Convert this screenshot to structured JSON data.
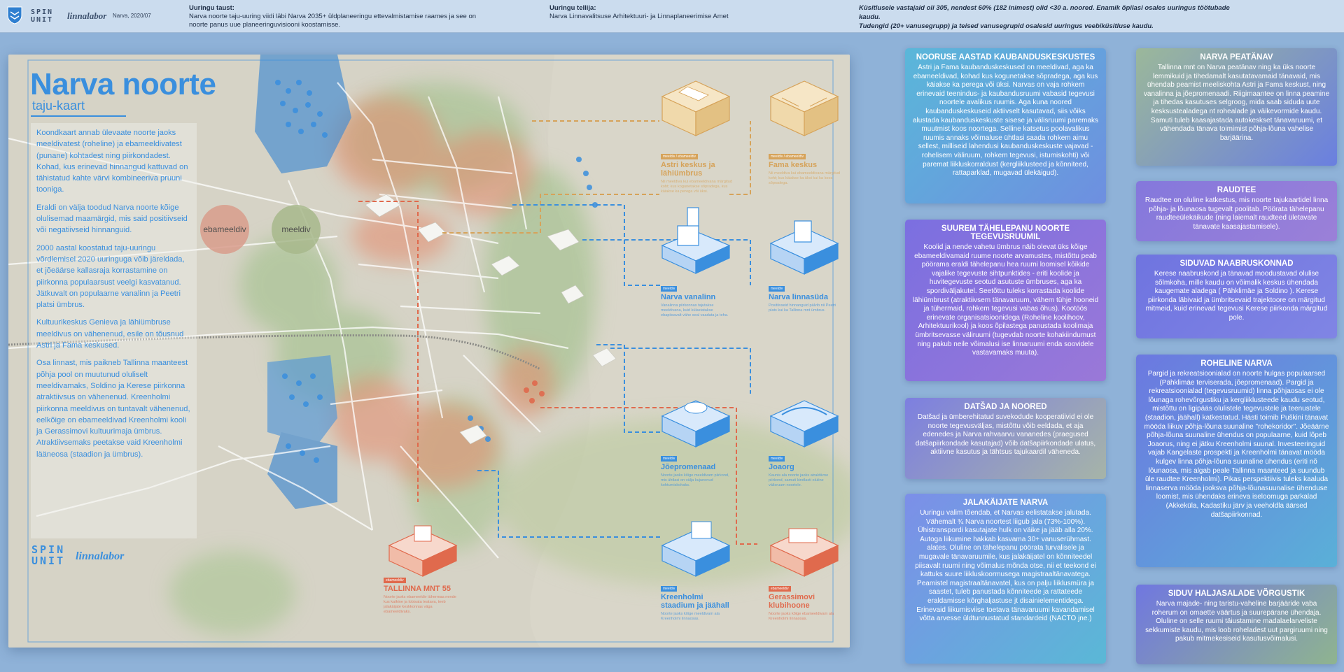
{
  "header": {
    "spin_unit": "SPIN UNIT",
    "linnalabor": "linnalabor",
    "place_date": "Narva, 2020/07",
    "background_label": "Uuringu taust:",
    "background_text": "Narva noorte taju-uuring viidi läbi Narva 2035+ üldplaneeringu ettevalmistamise raames ja see on noorte panus uue planeeringuvisiooni koostamisse.",
    "client_label": "Uuringu tellija:",
    "client_text": "Narva Linnavalitsuse Arhitektuuri- ja Linnaplaneerimise Amet",
    "respondents_line1": "Küsitlusele vastajaid oli  305, nendest 60% (182 inimest) olid <30 a. noored. Enamik õpilasi osales uuringus töötubade kaudu.",
    "respondents_line2": "Tudengid (20+ vanusegrupp) ja teised vanusegrupid osalesid uuringus veebiküsitluse kaudu."
  },
  "poster": {
    "title": "Narva noorte",
    "subtitle": "taju-kaart",
    "intro": [
      "Koondkaart annab ülevaate noorte jaoks meeldivatest (roheline) ja ebameeldivatest (punane) kohtadest ning piirkondadest. Kohad, kus erinevad hinnangud kattuvad on tähistatud kahte värvi kombineeriva pruuni tooniga.",
      "Eraldi on välja toodud Narva noorte kõige olulisemad maamärgid, mis said positiivseid või negatiivseid hinnanguid.",
      "2000 aastal koostatud taju-uuringu võrdlemisel 2020 uuringuga võib järeldada, et jõeäärse kallasraja korrastamine on piirkonna populaarsust veelgi kasvatanud. Jätkuvalt on populaarne vanalinn ja Peetri platsi ümbrus.",
      "Kultuurikeskus Genieva ja lähiümbruse meeldivus on vähenenud, esile on tõusnud Astri ja Fama keskused.",
      "Osa linnast, mis paikneb Tallinna maanteest põhja pool on muutunud oluliselt meeldivamaks, Soldino ja Kerese piirkonna atraktiivsus on vähenenud. Kreenholmi piirkonna meeldivus on tuntavalt vähenenud, eelkõige on ebameeldivad Kreenholmi kooli ja Gerassimovi kultuurimaja ümbrus.  Atraktiivsemaks peetakse vaid Kreenholmi lääneosa (staadion ja ümbrus)."
    ],
    "legend_negative": "ebameeldiv",
    "legend_positive": "meeldiv",
    "spin_unit": "SPIN UNIT",
    "linnalabor": "linnalabor",
    "buildings": [
      {
        "name": "Astri keskus ja lähiümbrus",
        "tag": "meeldiv / ebameeldiv",
        "desc": "Nii meeldiva kui ebameeldivana märgitud koht; kus kogunetakse sõpradega, kus käiakse ka perega või üksi."
      },
      {
        "name": "Fama keskus",
        "tag": "meeldiv / ebameeldiv",
        "desc": "Nii meeldiva kui ebameeldivana märgitud koht; kus käiakse ka üksi kui ka koos sõpradega."
      },
      {
        "name": "Narva vanalinn",
        "tag": "meeldiv",
        "desc": "Vanalinna piirkonnas tajutakse meeldivana, kuid külastatakse ebapiisavalt vähe seal vaadata ja teha."
      },
      {
        "name": "Narva linnasüda",
        "tag": "meeldiv",
        "desc": "Positiivseid hinnanguid pälvib nii Peetri plats kui ka Tallinna mnt ümbrus."
      },
      {
        "name": "Jõepromenaad",
        "tag": "meeldiv",
        "desc": "Noorte jaoks kõige meeldivam piirkond, mis ühtlasi on välja kujunenud kohtumiskohaks."
      },
      {
        "name": "Joaorg",
        "tag": "meeldiv",
        "desc": "Kaunis ala noorte jaoks atraktiivne piirkond, samuti kindlasti oluline välisruum noortele."
      },
      {
        "name": "TALLINNA MNT 55",
        "tag": "ebameeldiv",
        "desc": "Noorte jaoks ebameeldiv tühermaa nende kus katkine ja lobisata teatava, teeb jalakäijate keskkonnas väga ebameeldivaks."
      },
      {
        "name": "Kreenholmi staadium ja jäähall",
        "tag": "meeldiv",
        "desc": "Noorte jaoks kõige meeldivam ala Kreenholmi linnaosas."
      },
      {
        "name": "Gerassimovi klubihoone",
        "tag": "ebameeldiv",
        "desc": "Noorte jaoks kõige ebameeldivam ala Kreenholmi linnaosas."
      }
    ]
  },
  "panels_left": [
    {
      "title": "NOORUSE AASTAD KAUBANDUSKESKUSTES",
      "text": "Astri ja Fama kaubanduskeskused on meeldivad, aga ka ebameeldivad, kohad kus kogunetakse sõpradega, aga kus käiakse ka perega või üksi. Narvas on vaja rohkem erinevaid teenindus- ja kaubandusruumi vabasid tegevusi noortele avalikus ruumis. Aga kuna noored kaubanduskeskuseid aktiivselt kasutavad, siis võiks alustada kaubanduskeskuste sisese ja välisruumi paremaks muutmist koos noortega. Selline katsetus poolavalikus ruumis annaks võimaluse ühtlasi saada rohkem aimu sellest, milliseid lahendusi kaubanduskeskuste vajavad - rohelisem väliruum, rohkem tegevusi, istumiskohti) või paremat liikluskorraldust (kergliiklusteed ja kõnniteed, rattaparklad, mugavad ülekäigud)."
    },
    {
      "title": "SUUREM TÄHELEPANU NOORTE TEGEVUSRUUMIL",
      "text": "Koolid ja nende vahetu ümbrus näib olevat üks kõige ebameeldivamaid ruume noorte arvamustes, mistõttu peab pöörama eraldi tähelepanu hea ruumi loomisel kõikide vajalike tegevuste sihtpunktides - eriti koolide ja huvitegevuste seotud asutuste ümbruses, aga ka spordiväljakutel. Seetõttu tuleks korrastada koolide lähiümbrust (atraktiivsem tänavaruum, vähem tühje hooneid ja tühermaid, rohkem tegevusi vabas õhus). Kootöös erinevate organisatsioonidega (Roheline koolihoov, Arhitektuurikool) ja koos õpilastega panustada koolimaja ümbritsevasse väliruumi (tugevdab noorte kohakiindumust ning pakub neile võimalusi ise linnaruumi enda soovidele vastavamaks muuta)."
    },
    {
      "title": "DATŠAD JA NOORED",
      "text": "Datšad ja ümberehitatud suvekodude kooperatiivid ei ole noorte tegevusväljas, mistõttu võib eeldada, et aja edenedes ja Narva rahvaarvu vananedes (praegused datšapiirkondade kasutajad) võib datšapiirkondade ulatus, aktiivne kasutus ja tähtsus tajukaardil väheneda."
    },
    {
      "title": "JALAKÄIJATE NARVA",
      "text": "Uuringu valim tõendab, et Narvas eelistatakse jalutada. Vähemalt ¾  Narva noortest liigub jala (73%-100%). Ühistranspordi kasutajate hulk on väike ja jääb alla 20%. Autoga liikumine hakkab kasvama 30+ vanuserühmast. alates. Oluline on tähelepanu pöörata turvalisele ja mugavale tänavaruumile, kus jalakäijatel on kõnniteedel piisavalt ruumi ning võimalus mõnda otse, nii et teekond ei kattuks  suure liikluskoormusega magistraaltänavatega. Peamistel magistraaltänavatel, kus on palju liiklusmüra ja saastet, tuleb panustada kõnniteede ja rattateede eraldamisse kõrghaljastuse jt disainielementidega. Erinevaid liikumisviise toetava tänavaruumi kavandamisel võtta arvesse üldtunnustatud standardeid (NACTO  jne.)"
    }
  ],
  "panels_right": [
    {
      "title": "NARVA PEATÄNAV",
      "text": "Tallinna mnt on Narva peatänav ning ka üks noorte lemmikuid ja tihedamalt kasutatavamaid tänavaid, mis ühendab peamist meeliskohta Astri ja Fama keskust, ning vanalinna ja jõepromenaadi. Riigimaantee on linna peamine ja tihedas kasutuses selgroog, mida saab siduda uute kesksustealadega nt rohealade ja väikevormide kaudu. Samuti tuleb kaasajastada autokeskset tänavaruumi, et vähendada tänava toimimist põhja-lõuna vahelise barjäärina."
    },
    {
      "title": "RAUDTEE",
      "text": "Raudtee on oluline katkestus, mis noorte tajukaartidel linna põhja- ja lõunaosa tugevalt poolitab. Pöörata tähelepanu raudteeülekäikude (ning laiemalt raudteed ületavate tänavate kaasajastamisele)."
    },
    {
      "title": "SIDUVAD NAABRUSKONNAD",
      "text": "Kerese naabruskond ja tänavad moodustavad olulise sõlmkoha, mille kaudu on võimalik keskus ühendada kaugemate aladega ( Pähklimäe ja Soldino ). Kerese piirkonda läbivaid ja ümbritsevaid trajektoore on märgitud mitmeid, kuid erinevad tegevusi Kerese piirkonda märgitud pole."
    },
    {
      "title": "ROHELINE NARVA",
      "text": "Pargid ja rekreatsioonialad on noorte hulgas populaarsed (Pähklimäe terviserada, jõepromenaad). Pargid ja rekreatsioonialad (tegevusruumid)  linna põhjaosas ei ole lõunaga rohevõrgustiku ja kergliiklusteede kaudu seotud, mistõttu on ligipääs olulistele tegevustele ja teenustele (staadion, jäähall) katkestatud. Hästi toimib Puškini tänavat mööda liikuv põhja-lõuna suunaline \"rohekoridor\". Jõeäärne põhja-lõuna suunaline ühendus on populaarne, kuid lõpeb Joaorus, ning ei jätku Kreenholmi suunal. Investeeringuid vajab Kangelaste prospekti ja Kreenholmi tänavat mööda kulgev linna põhja-lõuna suunaline ühendus (eriti nõ lõunaosa, mis algab peale Tallinna maanteed ja suundub üle raudtee Kreenholmi). Pikas perspektiivis tuleks kaaluda linnaserva mööda jooksva põhja-lõunasuunalise ühenduse loomist, mis ühendaks erineva iseloomuga parkalad (Akkeküla, Kadastiku järv ja veeholdla äärsed datšapiirkonnad."
    },
    {
      "title": "SIDUV HALJASALADE VÕRGUSTIK",
      "text": "Narva majade- ning taristu-vaheline barjääride vaba roherum on omaette väärtus ja suurepärane ühendaja. Oluline on selle ruumi täiustamine madalaelarveliste sekkumiste kaudu, mis loob roheladest uut pargiruumi ning pakub mitmekesiseid kasutusvõimalusi."
    }
  ],
  "colors": {
    "accent_blue": "#3a8fde",
    "negative": "#e06a4d",
    "positive": "#8fb06a",
    "orange": "#d6a35a"
  }
}
